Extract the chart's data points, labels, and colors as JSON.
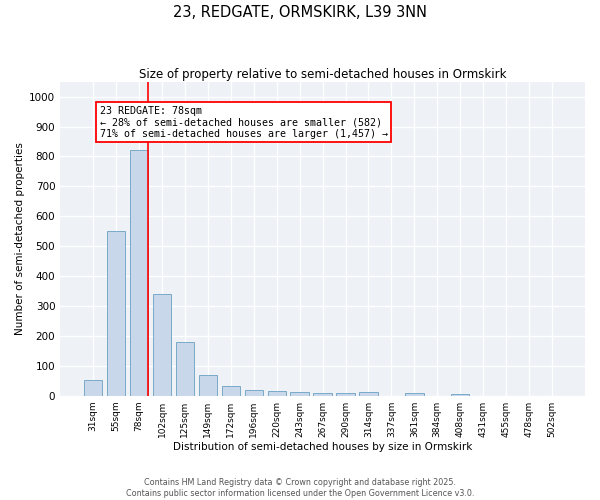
{
  "title": "23, REDGATE, ORMSKIRK, L39 3NN",
  "subtitle": "Size of property relative to semi-detached houses in Ormskirk",
  "xlabel": "Distribution of semi-detached houses by size in Ormskirk",
  "ylabel": "Number of semi-detached properties",
  "categories": [
    "31sqm",
    "55sqm",
    "78sqm",
    "102sqm",
    "125sqm",
    "149sqm",
    "172sqm",
    "196sqm",
    "220sqm",
    "243sqm",
    "267sqm",
    "290sqm",
    "314sqm",
    "337sqm",
    "361sqm",
    "384sqm",
    "408sqm",
    "431sqm",
    "455sqm",
    "478sqm",
    "502sqm"
  ],
  "values": [
    52,
    550,
    820,
    340,
    178,
    68,
    32,
    18,
    15,
    12,
    10,
    10,
    12,
    0,
    8,
    0,
    5,
    0,
    0,
    0,
    0
  ],
  "highlight_index": 2,
  "bar_color": "#c8d8ea",
  "bar_edge_color": "#7aaac8",
  "redline_x": 2.4,
  "annotation_title": "23 REDGATE: 78sqm",
  "annotation_line1": "← 28% of semi-detached houses are smaller (582)",
  "annotation_line2": "71% of semi-detached houses are larger (1,457) →",
  "ylim": [
    0,
    1050
  ],
  "yticks": [
    0,
    100,
    200,
    300,
    400,
    500,
    600,
    700,
    800,
    900,
    1000
  ],
  "footer_line1": "Contains HM Land Registry data © Crown copyright and database right 2025.",
  "footer_line2": "Contains public sector information licensed under the Open Government Licence v3.0.",
  "bg_color": "#eef2f7"
}
